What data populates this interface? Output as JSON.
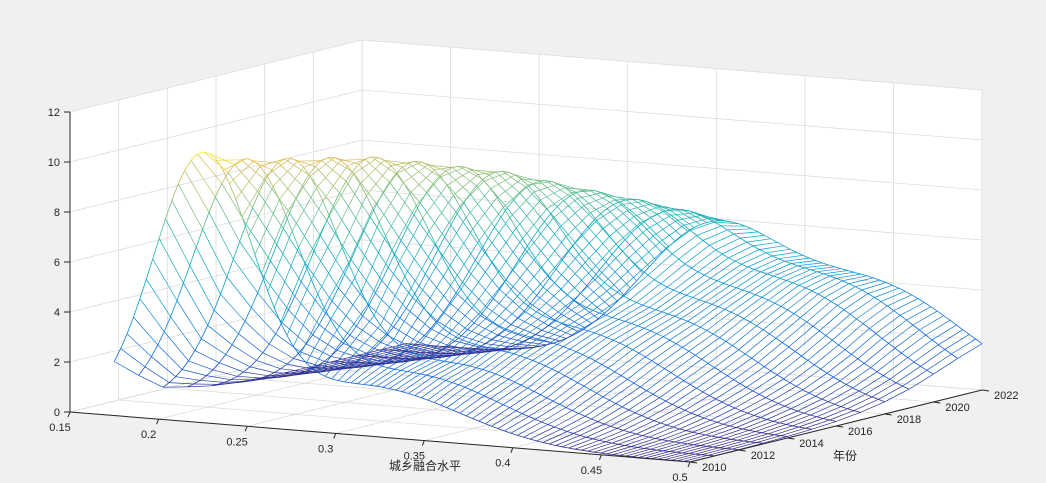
{
  "chart_data": {
    "type": "surface-mesh",
    "title": "",
    "xlabel": "城乡融合水平",
    "ylabel": "年份",
    "zlabel": "",
    "xlim": [
      0.15,
      0.5
    ],
    "ylim": [
      2010,
      2022
    ],
    "zlim": [
      0,
      12
    ],
    "x_ticks": [
      "0.15",
      "0.2",
      "0.25",
      "0.3",
      "0.35",
      "0.4",
      "0.45",
      "0.5"
    ],
    "y_ticks": [
      "2010",
      "2012",
      "2014",
      "2016",
      "2018",
      "2020",
      "2022"
    ],
    "z_ticks": [
      "0",
      "2",
      "4",
      "6",
      "8",
      "10",
      "12"
    ],
    "grid": true,
    "colormap": "parula",
    "series": [
      {
        "year": 2010,
        "peaks": [
          {
            "center": 0.225,
            "height": 10.5,
            "width": 0.028
          },
          {
            "center": 0.32,
            "height": 2.0,
            "width": 0.05
          }
        ]
      },
      {
        "year": 2011,
        "peaks": [
          {
            "center": 0.235,
            "height": 10.0,
            "width": 0.03
          },
          {
            "center": 0.33,
            "height": 2.3,
            "width": 0.05
          }
        ]
      },
      {
        "year": 2012,
        "peaks": [
          {
            "center": 0.245,
            "height": 9.8,
            "width": 0.03
          },
          {
            "center": 0.34,
            "height": 2.5,
            "width": 0.05
          }
        ]
      },
      {
        "year": 2013,
        "peaks": [
          {
            "center": 0.255,
            "height": 9.6,
            "width": 0.032
          },
          {
            "center": 0.35,
            "height": 2.8,
            "width": 0.05
          }
        ]
      },
      {
        "year": 2014,
        "peaks": [
          {
            "center": 0.265,
            "height": 9.4,
            "width": 0.033
          },
          {
            "center": 0.36,
            "height": 3.0,
            "width": 0.05
          }
        ]
      },
      {
        "year": 2015,
        "peaks": [
          {
            "center": 0.275,
            "height": 9.0,
            "width": 0.034
          },
          {
            "center": 0.37,
            "height": 3.2,
            "width": 0.05
          }
        ]
      },
      {
        "year": 2016,
        "peaks": [
          {
            "center": 0.285,
            "height": 8.6,
            "width": 0.035
          },
          {
            "center": 0.38,
            "height": 3.3,
            "width": 0.05
          }
        ]
      },
      {
        "year": 2017,
        "peaks": [
          {
            "center": 0.295,
            "height": 8.2,
            "width": 0.036
          },
          {
            "center": 0.39,
            "height": 3.4,
            "width": 0.05
          }
        ]
      },
      {
        "year": 2018,
        "peaks": [
          {
            "center": 0.305,
            "height": 7.6,
            "width": 0.037
          },
          {
            "center": 0.4,
            "height": 3.6,
            "width": 0.05
          }
        ]
      },
      {
        "year": 2019,
        "peaks": [
          {
            "center": 0.315,
            "height": 7.0,
            "width": 0.038
          },
          {
            "center": 0.41,
            "height": 3.8,
            "width": 0.05
          }
        ]
      },
      {
        "year": 2020,
        "peaks": [
          {
            "center": 0.325,
            "height": 6.4,
            "width": 0.039
          },
          {
            "center": 0.42,
            "height": 4.0,
            "width": 0.05
          }
        ]
      },
      {
        "year": 2021,
        "peaks": [
          {
            "center": 0.335,
            "height": 5.8,
            "width": 0.04
          },
          {
            "center": 0.43,
            "height": 4.0,
            "width": 0.05
          }
        ]
      },
      {
        "year": 2022,
        "peaks": [
          {
            "center": 0.345,
            "height": 5.2,
            "width": 0.04
          },
          {
            "center": 0.44,
            "height": 3.8,
            "width": 0.05
          }
        ]
      }
    ]
  }
}
